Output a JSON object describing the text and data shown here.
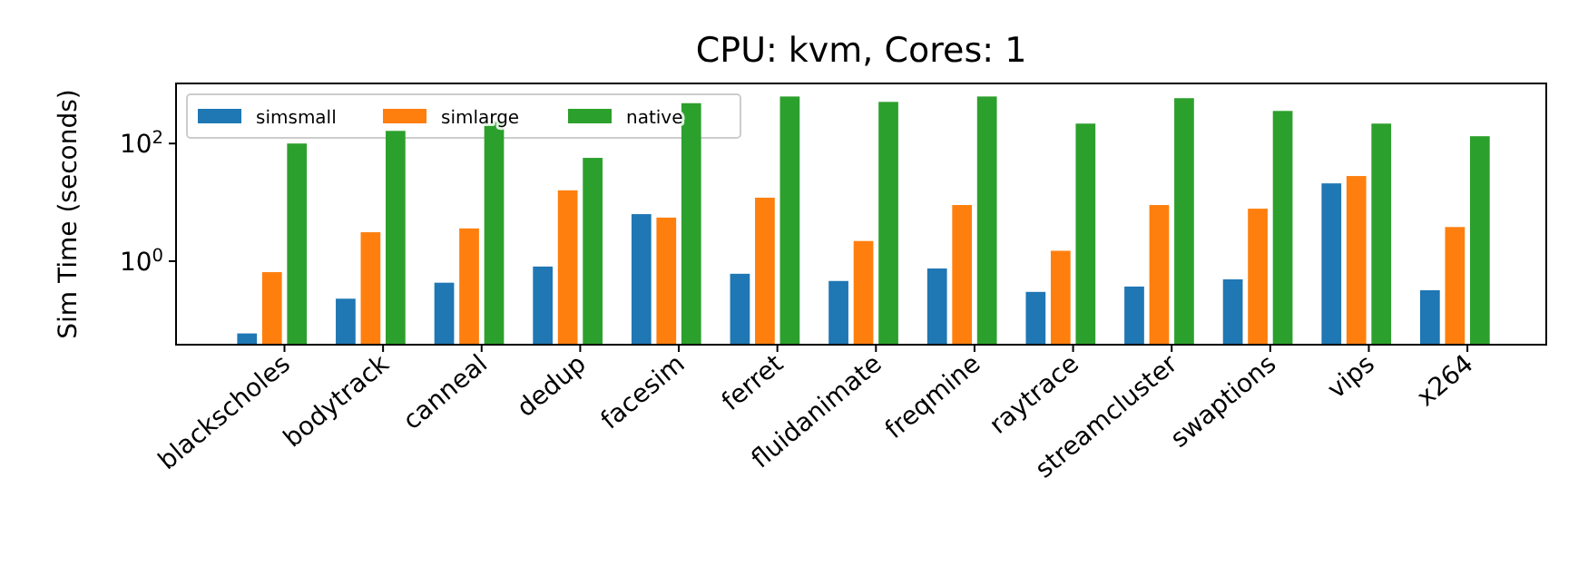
{
  "chart_data": {
    "type": "bar",
    "title": "CPU: kvm, Cores: 1",
    "ylabel": "Sim Time (seconds)",
    "categories": [
      "blackscholes",
      "bodytrack",
      "canneal",
      "dedup",
      "facesim",
      "ferret",
      "fluidanimate",
      "freqmine",
      "raytrace",
      "streamcluster",
      "swaptions",
      "vips",
      "x264"
    ],
    "series": [
      {
        "name": "simsmall",
        "color": "#1f77b4",
        "values": [
          0.059,
          0.23,
          0.43,
          0.81,
          6.3,
          0.61,
          0.46,
          0.75,
          0.3,
          0.37,
          0.49,
          21,
          0.32
        ]
      },
      {
        "name": "simlarge",
        "color": "#ff7f0e",
        "values": [
          0.65,
          3.1,
          3.6,
          16,
          5.5,
          12,
          2.2,
          9,
          1.5,
          9,
          7.8,
          28,
          3.8
        ]
      },
      {
        "name": "native",
        "color": "#2ca02c",
        "values": [
          100,
          164,
          240,
          57,
          485,
          630,
          510,
          630,
          218,
          590,
          358,
          218,
          133
        ]
      }
    ],
    "log": true,
    "ylim": [
      0.038,
      1050
    ],
    "yticks": [
      {
        "value": 1,
        "label": "10$^{0}$"
      },
      {
        "value": 100,
        "label": "10$^{2}$"
      }
    ],
    "legend": "top left"
  }
}
